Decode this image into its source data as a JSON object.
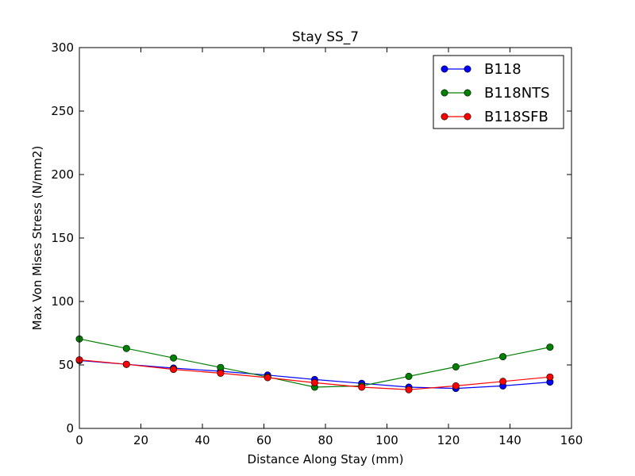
{
  "chart_data": {
    "type": "line",
    "title": "Stay SS_7",
    "xlabel": "Distance Along Stay (mm)",
    "ylabel": "Max Von Mises Stress (N/mm2)",
    "xlim": [
      0,
      160
    ],
    "ylim": [
      0,
      300
    ],
    "xticks": [
      0,
      20,
      40,
      60,
      80,
      100,
      120,
      140,
      160
    ],
    "yticks": [
      0,
      50,
      100,
      150,
      200,
      250,
      300
    ],
    "grid": false,
    "legend_position": "top-right",
    "x": [
      0,
      15.3,
      30.6,
      45.9,
      61.2,
      76.5,
      91.8,
      107.1,
      122.4,
      137.7,
      153
    ],
    "series": [
      {
        "name": "B118",
        "color": "#0000ff",
        "values": [
          53.5,
          50.5,
          47.5,
          45,
          42,
          38.5,
          35.5,
          32.5,
          31.5,
          33.5,
          36.5
        ]
      },
      {
        "name": "B118NTS",
        "color": "#008000",
        "values": [
          70.5,
          63,
          55.5,
          48,
          40.5,
          32.5,
          33.5,
          41,
          48.5,
          56.5,
          64
        ]
      },
      {
        "name": "B118SFB",
        "color": "#ff0000",
        "values": [
          54,
          50.5,
          46.5,
          43.5,
          40,
          36,
          32.5,
          30.5,
          33.5,
          37,
          40.5
        ]
      }
    ]
  }
}
